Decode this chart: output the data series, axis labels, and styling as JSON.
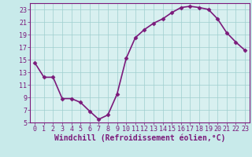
{
  "x": [
    0,
    1,
    2,
    3,
    4,
    5,
    6,
    7,
    8,
    9,
    10,
    11,
    12,
    13,
    14,
    15,
    16,
    17,
    18,
    19,
    20,
    21,
    22,
    23
  ],
  "y": [
    14.5,
    12.2,
    12.2,
    8.8,
    8.8,
    8.2,
    6.8,
    5.5,
    6.2,
    9.5,
    15.2,
    18.5,
    19.8,
    20.8,
    21.5,
    22.5,
    23.3,
    23.5,
    23.3,
    23.0,
    21.5,
    19.3,
    17.8,
    16.5
  ],
  "line_color": "#7b1a7b",
  "marker": "D",
  "marker_size": 2.5,
  "bg_color": "#c8eaea",
  "grid_color": "#9ecece",
  "plot_bg": "#d8f0f0",
  "xlabel": "Windchill (Refroidissement éolien,°C)",
  "ylim": [
    5,
    24
  ],
  "xlim": [
    -0.5,
    23.5
  ],
  "yticks": [
    5,
    7,
    9,
    11,
    13,
    15,
    17,
    19,
    21,
    23
  ],
  "xticks": [
    0,
    1,
    2,
    3,
    4,
    5,
    6,
    7,
    8,
    9,
    10,
    11,
    12,
    13,
    14,
    15,
    16,
    17,
    18,
    19,
    20,
    21,
    22,
    23
  ],
  "font_color": "#7b1a7b",
  "tick_fontsize": 6.0,
  "xlabel_fontsize": 7.0,
  "linewidth": 1.2
}
